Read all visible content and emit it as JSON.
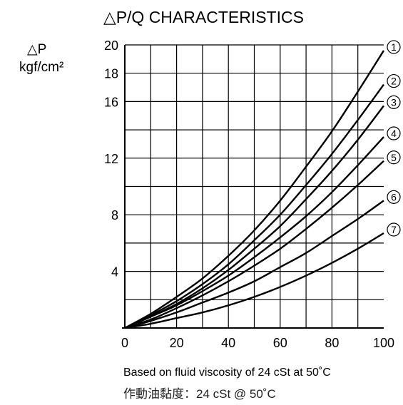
{
  "chart_data": {
    "type": "line",
    "title": "△P/Q CHARACTERISTICS",
    "ylabel": "△P",
    "ylabel_unit": "kgf/cm²",
    "xlabel": "",
    "xlim": [
      0,
      100
    ],
    "ylim": [
      0,
      20
    ],
    "x_ticks": [
      "0",
      "20",
      "40",
      "60",
      "80",
      "100"
    ],
    "y_ticks": [
      "4",
      "8",
      "12",
      "16",
      "18",
      "20"
    ],
    "grid": true,
    "x": [
      0,
      10,
      20,
      30,
      40,
      50,
      60,
      70,
      80,
      90,
      100
    ],
    "series": [
      {
        "name": "①",
        "values": [
          0,
          1.0,
          2.2,
          3.5,
          5.1,
          6.9,
          9.0,
          11.4,
          13.9,
          16.7,
          19.6
        ]
      },
      {
        "name": "②",
        "values": [
          0,
          0.9,
          1.9,
          3.1,
          4.5,
          6.2,
          8.0,
          10.1,
          12.3,
          14.7,
          17.2
        ]
      },
      {
        "name": "③",
        "values": [
          0,
          0.8,
          1.7,
          2.8,
          4.1,
          5.6,
          7.2,
          9.1,
          11.1,
          13.3,
          15.7
        ]
      },
      {
        "name": "④",
        "values": [
          0,
          0.8,
          1.6,
          2.6,
          3.7,
          5.0,
          6.4,
          7.9,
          9.6,
          11.5,
          13.5
        ]
      },
      {
        "name": "⑤",
        "values": [
          0,
          0.6,
          1.4,
          2.3,
          3.3,
          4.4,
          5.6,
          7.0,
          8.5,
          10.1,
          11.8
        ]
      },
      {
        "name": "⑥",
        "values": [
          0,
          0.5,
          1.1,
          1.8,
          2.5,
          3.3,
          4.3,
          5.3,
          6.5,
          7.7,
          9.0
        ]
      },
      {
        "name": "⑦",
        "values": [
          0,
          0.3,
          0.7,
          1.1,
          1.6,
          2.2,
          2.9,
          3.7,
          4.6,
          5.6,
          6.7
        ]
      }
    ],
    "annotations": [
      "Based on fluid viscosity of 24 cSt at 50˚C",
      "作動油黏度：24 cSt  @ 50˚C"
    ]
  }
}
